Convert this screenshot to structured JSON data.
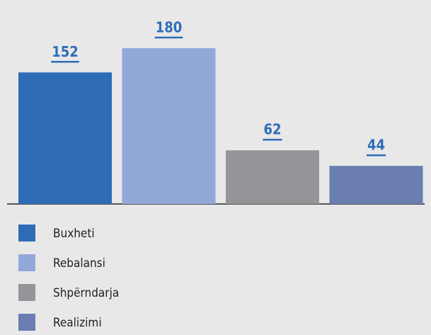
{
  "chart_data": {
    "type": "bar",
    "categories": [
      "Buxheti",
      "Rebalansi",
      "Shpërndarja",
      "Realizimi"
    ],
    "values": [
      152,
      180,
      62,
      44
    ],
    "colors": [
      "#2e6db6",
      "#92a8d8",
      "#939598",
      "#6a7db0"
    ],
    "legend": "bottom-left"
  }
}
